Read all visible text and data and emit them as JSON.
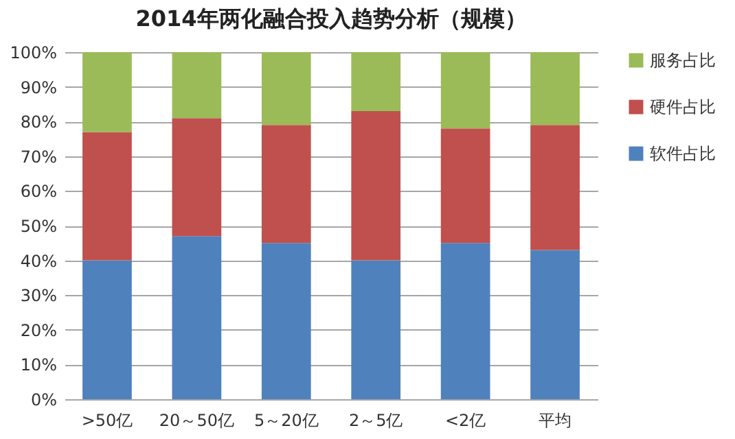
{
  "chart_data": {
    "type": "bar",
    "title": "2014年两化融合投入趋势分析（规模）",
    "stacked": true,
    "categories": [
      ">50亿",
      "20～50亿",
      "5～20亿",
      "2～5亿",
      "<2亿",
      "平均"
    ],
    "series": [
      {
        "name": "软件占比",
        "color": "#4f81bd",
        "values": [
          40,
          47,
          45,
          40,
          45,
          43
        ]
      },
      {
        "name": "硬件占比",
        "color": "#c0504d",
        "values": [
          37,
          34,
          34,
          43,
          33,
          36
        ]
      },
      {
        "name": "服务占比",
        "color": "#9bbb59",
        "values": [
          23,
          19,
          21,
          17,
          22,
          21
        ]
      }
    ],
    "ylim": [
      0,
      100
    ],
    "yticks": [
      {
        "value": 0,
        "label": "0%"
      },
      {
        "value": 10,
        "label": "10%"
      },
      {
        "value": 20,
        "label": "20%"
      },
      {
        "value": 30,
        "label": "30%"
      },
      {
        "value": 40,
        "label": "40%"
      },
      {
        "value": 50,
        "label": "50%"
      },
      {
        "value": 60,
        "label": "60%"
      },
      {
        "value": 70,
        "label": "70%"
      },
      {
        "value": 80,
        "label": "80%"
      },
      {
        "value": 90,
        "label": "90%"
      },
      {
        "value": 100,
        "label": "100%"
      }
    ],
    "grid": true,
    "legend": "right"
  }
}
